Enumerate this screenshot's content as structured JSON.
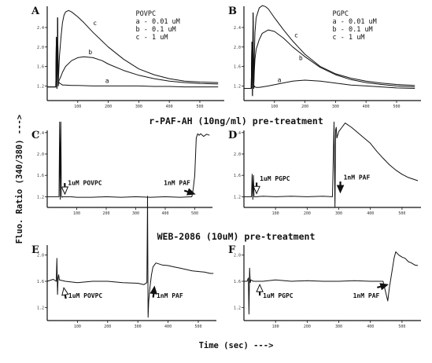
{
  "figure": {
    "ylabel": "Fluo. Ratio (340/380) --->",
    "xlabel": "Time (sec) --->",
    "section_titles": [
      "r-PAF-AH (10ng/ml) pre-treatment",
      "WEB-2086 (10uM) pre-treatment"
    ],
    "colors": {
      "ink": "#111111",
      "background": "#ffffff"
    }
  },
  "chart_data": [
    {
      "id": "A",
      "type": "line",
      "letter": "A",
      "legend": [
        "POVPC",
        "a - 0.01 uM",
        "b - 0.1 uM",
        "c - 1 uM"
      ],
      "xlim": [
        0,
        580
      ],
      "ylim": [
        0.9,
        2.9
      ],
      "yticks": [
        1.2,
        1.6,
        2.0,
        2.4
      ],
      "xticks": [
        100,
        200,
        300,
        400,
        500
      ],
      "series": [
        {
          "id": "a",
          "tag": "a",
          "tag_x": 190,
          "tag_y": 1.26,
          "x": [
            0,
            28,
            30,
            32,
            34,
            36,
            38,
            40,
            45,
            50,
            60,
            80,
            100,
            150,
            200,
            250,
            300,
            350,
            400,
            450,
            500,
            560
          ],
          "y": [
            1.18,
            1.18,
            2.2,
            1.15,
            2.6,
            1.2,
            1.28,
            1.26,
            1.24,
            1.22,
            1.22,
            1.21,
            1.21,
            1.2,
            1.2,
            1.2,
            1.2,
            1.19,
            1.19,
            1.18,
            1.18,
            1.18
          ]
        },
        {
          "id": "b",
          "tag": "b",
          "tag_x": 135,
          "tag_y": 1.85,
          "x": [
            0,
            28,
            30,
            32,
            34,
            36,
            38,
            40,
            45,
            50,
            60,
            80,
            100,
            120,
            150,
            180,
            200,
            250,
            300,
            350,
            400,
            450,
            500,
            560
          ],
          "y": [
            1.18,
            1.18,
            2.2,
            1.15,
            2.6,
            1.2,
            1.3,
            1.33,
            1.4,
            1.48,
            1.6,
            1.72,
            1.78,
            1.8,
            1.78,
            1.72,
            1.65,
            1.52,
            1.42,
            1.35,
            1.3,
            1.27,
            1.25,
            1.24
          ]
        },
        {
          "id": "c",
          "tag": "c",
          "tag_x": 150,
          "tag_y": 2.45,
          "x": [
            0,
            28,
            30,
            32,
            34,
            36,
            38,
            40,
            45,
            50,
            55,
            60,
            70,
            80,
            100,
            120,
            150,
            200,
            250,
            300,
            350,
            400,
            450,
            500,
            560
          ],
          "y": [
            1.18,
            1.18,
            2.2,
            1.15,
            2.6,
            1.2,
            1.5,
            1.8,
            2.2,
            2.5,
            2.65,
            2.72,
            2.75,
            2.72,
            2.62,
            2.5,
            2.3,
            2.0,
            1.75,
            1.55,
            1.43,
            1.35,
            1.3,
            1.28,
            1.27
          ]
        }
      ]
    },
    {
      "id": "B",
      "type": "line",
      "letter": "B",
      "legend": [
        "PGPC",
        "a - 0.01 uM",
        "b - 0.1 uM",
        "c - 1 uM"
      ],
      "xlim": [
        0,
        580
      ],
      "ylim": [
        0.9,
        2.9
      ],
      "yticks": [
        1.2,
        1.6,
        2.0,
        2.4
      ],
      "xticks": [
        100,
        200,
        300,
        400,
        500
      ],
      "series": [
        {
          "id": "a",
          "tag": "a",
          "tag_x": 110,
          "tag_y": 1.28,
          "x": [
            0,
            24,
            26,
            28,
            30,
            32,
            34,
            36,
            40,
            50,
            80,
            120,
            160,
            200,
            250,
            300,
            350,
            400,
            450,
            500,
            560
          ],
          "y": [
            1.15,
            1.15,
            2.1,
            1.0,
            2.7,
            1.15,
            1.2,
            1.18,
            1.17,
            1.17,
            1.2,
            1.25,
            1.3,
            1.32,
            1.3,
            1.26,
            1.22,
            1.2,
            1.18,
            1.16,
            1.15
          ]
        },
        {
          "id": "b",
          "tag": "b",
          "tag_x": 180,
          "tag_y": 1.73,
          "x": [
            0,
            24,
            26,
            28,
            30,
            32,
            34,
            36,
            40,
            50,
            60,
            80,
            100,
            130,
            160,
            200,
            250,
            300,
            350,
            400,
            450,
            500,
            560
          ],
          "y": [
            1.15,
            1.15,
            2.1,
            1.0,
            2.7,
            1.15,
            1.5,
            1.75,
            1.95,
            2.15,
            2.28,
            2.35,
            2.32,
            2.18,
            2.0,
            1.8,
            1.58,
            1.43,
            1.33,
            1.27,
            1.23,
            1.2,
            1.18
          ]
        },
        {
          "id": "c",
          "tag": "c",
          "tag_x": 165,
          "tag_y": 2.2,
          "x": [
            0,
            24,
            26,
            28,
            30,
            32,
            34,
            36,
            40,
            50,
            60,
            70,
            80,
            100,
            130,
            160,
            200,
            250,
            300,
            350,
            400,
            450,
            500,
            560
          ],
          "y": [
            1.15,
            1.15,
            2.1,
            1.0,
            2.7,
            1.15,
            1.8,
            2.3,
            2.6,
            2.8,
            2.85,
            2.83,
            2.78,
            2.6,
            2.35,
            2.12,
            1.85,
            1.6,
            1.45,
            1.36,
            1.3,
            1.26,
            1.23,
            1.21
          ]
        }
      ]
    },
    {
      "id": "C",
      "type": "line",
      "letter": "C",
      "xlim": [
        0,
        560
      ],
      "ylim": [
        1.0,
        2.5
      ],
      "yticks": [
        1.2,
        1.6,
        2.0,
        2.4
      ],
      "xticks": [
        100,
        200,
        300,
        400,
        500
      ],
      "annotations": [
        {
          "id": "povpc",
          "text": "1uM POVPC",
          "arrow": "hollow",
          "x": 70,
          "y": 1.42,
          "arrow_x": 60,
          "arrow_y": 1.25
        },
        {
          "id": "paf",
          "text": "1nM PAF",
          "arrow": "filled",
          "x": 395,
          "y": 1.42,
          "arrow_x": 500,
          "arrow_y": 1.25
        }
      ],
      "series": [
        {
          "id": "trace",
          "x": [
            0,
            20,
            40,
            42,
            44,
            46,
            48,
            50,
            52,
            60,
            80,
            100,
            150,
            200,
            250,
            300,
            350,
            400,
            450,
            490,
            495,
            500,
            505,
            510,
            515,
            520,
            530,
            540,
            550
          ],
          "y": [
            1.2,
            1.2,
            1.2,
            2.6,
            1.15,
            2.6,
            1.2,
            1.19,
            1.2,
            1.2,
            1.2,
            1.19,
            1.19,
            1.2,
            1.19,
            1.2,
            1.19,
            1.2,
            1.19,
            1.2,
            1.35,
            1.6,
            2.3,
            2.38,
            2.35,
            2.38,
            2.33,
            2.37,
            2.35
          ]
        }
      ]
    },
    {
      "id": "D",
      "type": "line",
      "letter": "D",
      "xlim": [
        0,
        560
      ],
      "ylim": [
        1.0,
        2.5
      ],
      "yticks": [
        1.2,
        1.6,
        2.0,
        2.4
      ],
      "xticks": [
        100,
        200,
        300,
        400,
        500
      ],
      "annotations": [
        {
          "id": "pgpc",
          "text": "1uM PGPC",
          "arrow": "hollow",
          "x": 50,
          "y": 1.5,
          "arrow_x": 40,
          "arrow_y": 1.26
        },
        {
          "id": "paf",
          "text": "1nM PAF",
          "arrow": "filled",
          "x": 315,
          "y": 1.52,
          "arrow_x": 305,
          "arrow_y": 1.28
        }
      ],
      "series": [
        {
          "id": "trace",
          "x": [
            0,
            20,
            24,
            26,
            28,
            30,
            32,
            40,
            60,
            100,
            150,
            200,
            250,
            280,
            285,
            288,
            290,
            292,
            294,
            300,
            310,
            320,
            340,
            360,
            380,
            400,
            420,
            440,
            460,
            480,
            500,
            520,
            540,
            550
          ],
          "y": [
            1.2,
            1.2,
            1.2,
            1.62,
            1.15,
            1.6,
            1.2,
            1.2,
            1.21,
            1.2,
            1.21,
            1.2,
            1.21,
            1.2,
            2.6,
            1.0,
            2.45,
            2.5,
            2.3,
            2.42,
            2.5,
            2.58,
            2.5,
            2.4,
            2.3,
            2.2,
            2.05,
            1.92,
            1.8,
            1.7,
            1.62,
            1.56,
            1.52,
            1.5
          ]
        }
      ]
    },
    {
      "id": "E",
      "type": "line",
      "letter": "E",
      "xlim": [
        0,
        560
      ],
      "ylim": [
        1.0,
        2.2
      ],
      "yticks": [
        1.2,
        1.6,
        2.0
      ],
      "xticks": [
        100,
        200,
        300,
        400,
        500
      ],
      "annotations": [
        {
          "id": "povpc",
          "text": "1uM POVPC",
          "arrow": "hollow",
          "x": 70,
          "y": 1.35,
          "arrow_x": 55,
          "arrow_y": 1.5
        },
        {
          "id": "paf",
          "text": "1nM PAF",
          "arrow": "filled",
          "x": 362,
          "y": 1.35,
          "arrow_x": 355,
          "arrow_y": 1.52
        }
      ],
      "series": [
        {
          "id": "trace",
          "x": [
            0,
            20,
            30,
            32,
            34,
            36,
            38,
            40,
            60,
            100,
            150,
            200,
            250,
            300,
            320,
            330,
            332,
            334,
            336,
            340,
            345,
            350,
            355,
            360,
            380,
            400,
            420,
            440,
            460,
            480,
            500,
            520,
            540,
            550
          ],
          "y": [
            1.6,
            1.63,
            1.6,
            1.95,
            1.4,
            1.65,
            1.7,
            1.62,
            1.6,
            1.58,
            1.6,
            1.6,
            1.58,
            1.57,
            1.55,
            1.58,
            2.9,
            1.05,
            1.3,
            1.5,
            1.7,
            1.82,
            1.85,
            1.88,
            1.85,
            1.84,
            1.82,
            1.8,
            1.78,
            1.76,
            1.75,
            1.74,
            1.72,
            1.72
          ]
        }
      ]
    },
    {
      "id": "F",
      "type": "line",
      "letter": "F",
      "xlim": [
        0,
        560
      ],
      "ylim": [
        1.0,
        2.2
      ],
      "yticks": [
        1.2,
        1.6,
        2.0
      ],
      "xticks": [
        100,
        200,
        300,
        400,
        500
      ],
      "annotations": [
        {
          "id": "pgpc",
          "text": "1uM PGPC",
          "arrow": "hollow",
          "x": 60,
          "y": 1.35,
          "arrow_x": 50,
          "arrow_y": 1.55
        },
        {
          "id": "paf",
          "text": "1nM PAF",
          "arrow": "filled",
          "x": 345,
          "y": 1.35,
          "arrow_x": 455,
          "arrow_y": 1.55
        }
      ],
      "series": [
        {
          "id": "trace",
          "x": [
            0,
            10,
            14,
            16,
            18,
            20,
            22,
            30,
            60,
            100,
            150,
            200,
            250,
            300,
            350,
            400,
            440,
            450,
            455,
            460,
            465,
            470,
            475,
            480,
            490,
            500,
            510,
            520,
            530,
            540,
            550
          ],
          "y": [
            1.6,
            1.6,
            1.65,
            1.1,
            1.8,
            1.58,
            1.62,
            1.6,
            1.6,
            1.62,
            1.6,
            1.61,
            1.6,
            1.6,
            1.61,
            1.6,
            1.6,
            1.4,
            1.3,
            1.5,
            1.65,
            1.8,
            1.95,
            2.05,
            2.0,
            1.97,
            1.95,
            1.9,
            1.88,
            1.85,
            1.84
          ]
        }
      ]
    }
  ]
}
